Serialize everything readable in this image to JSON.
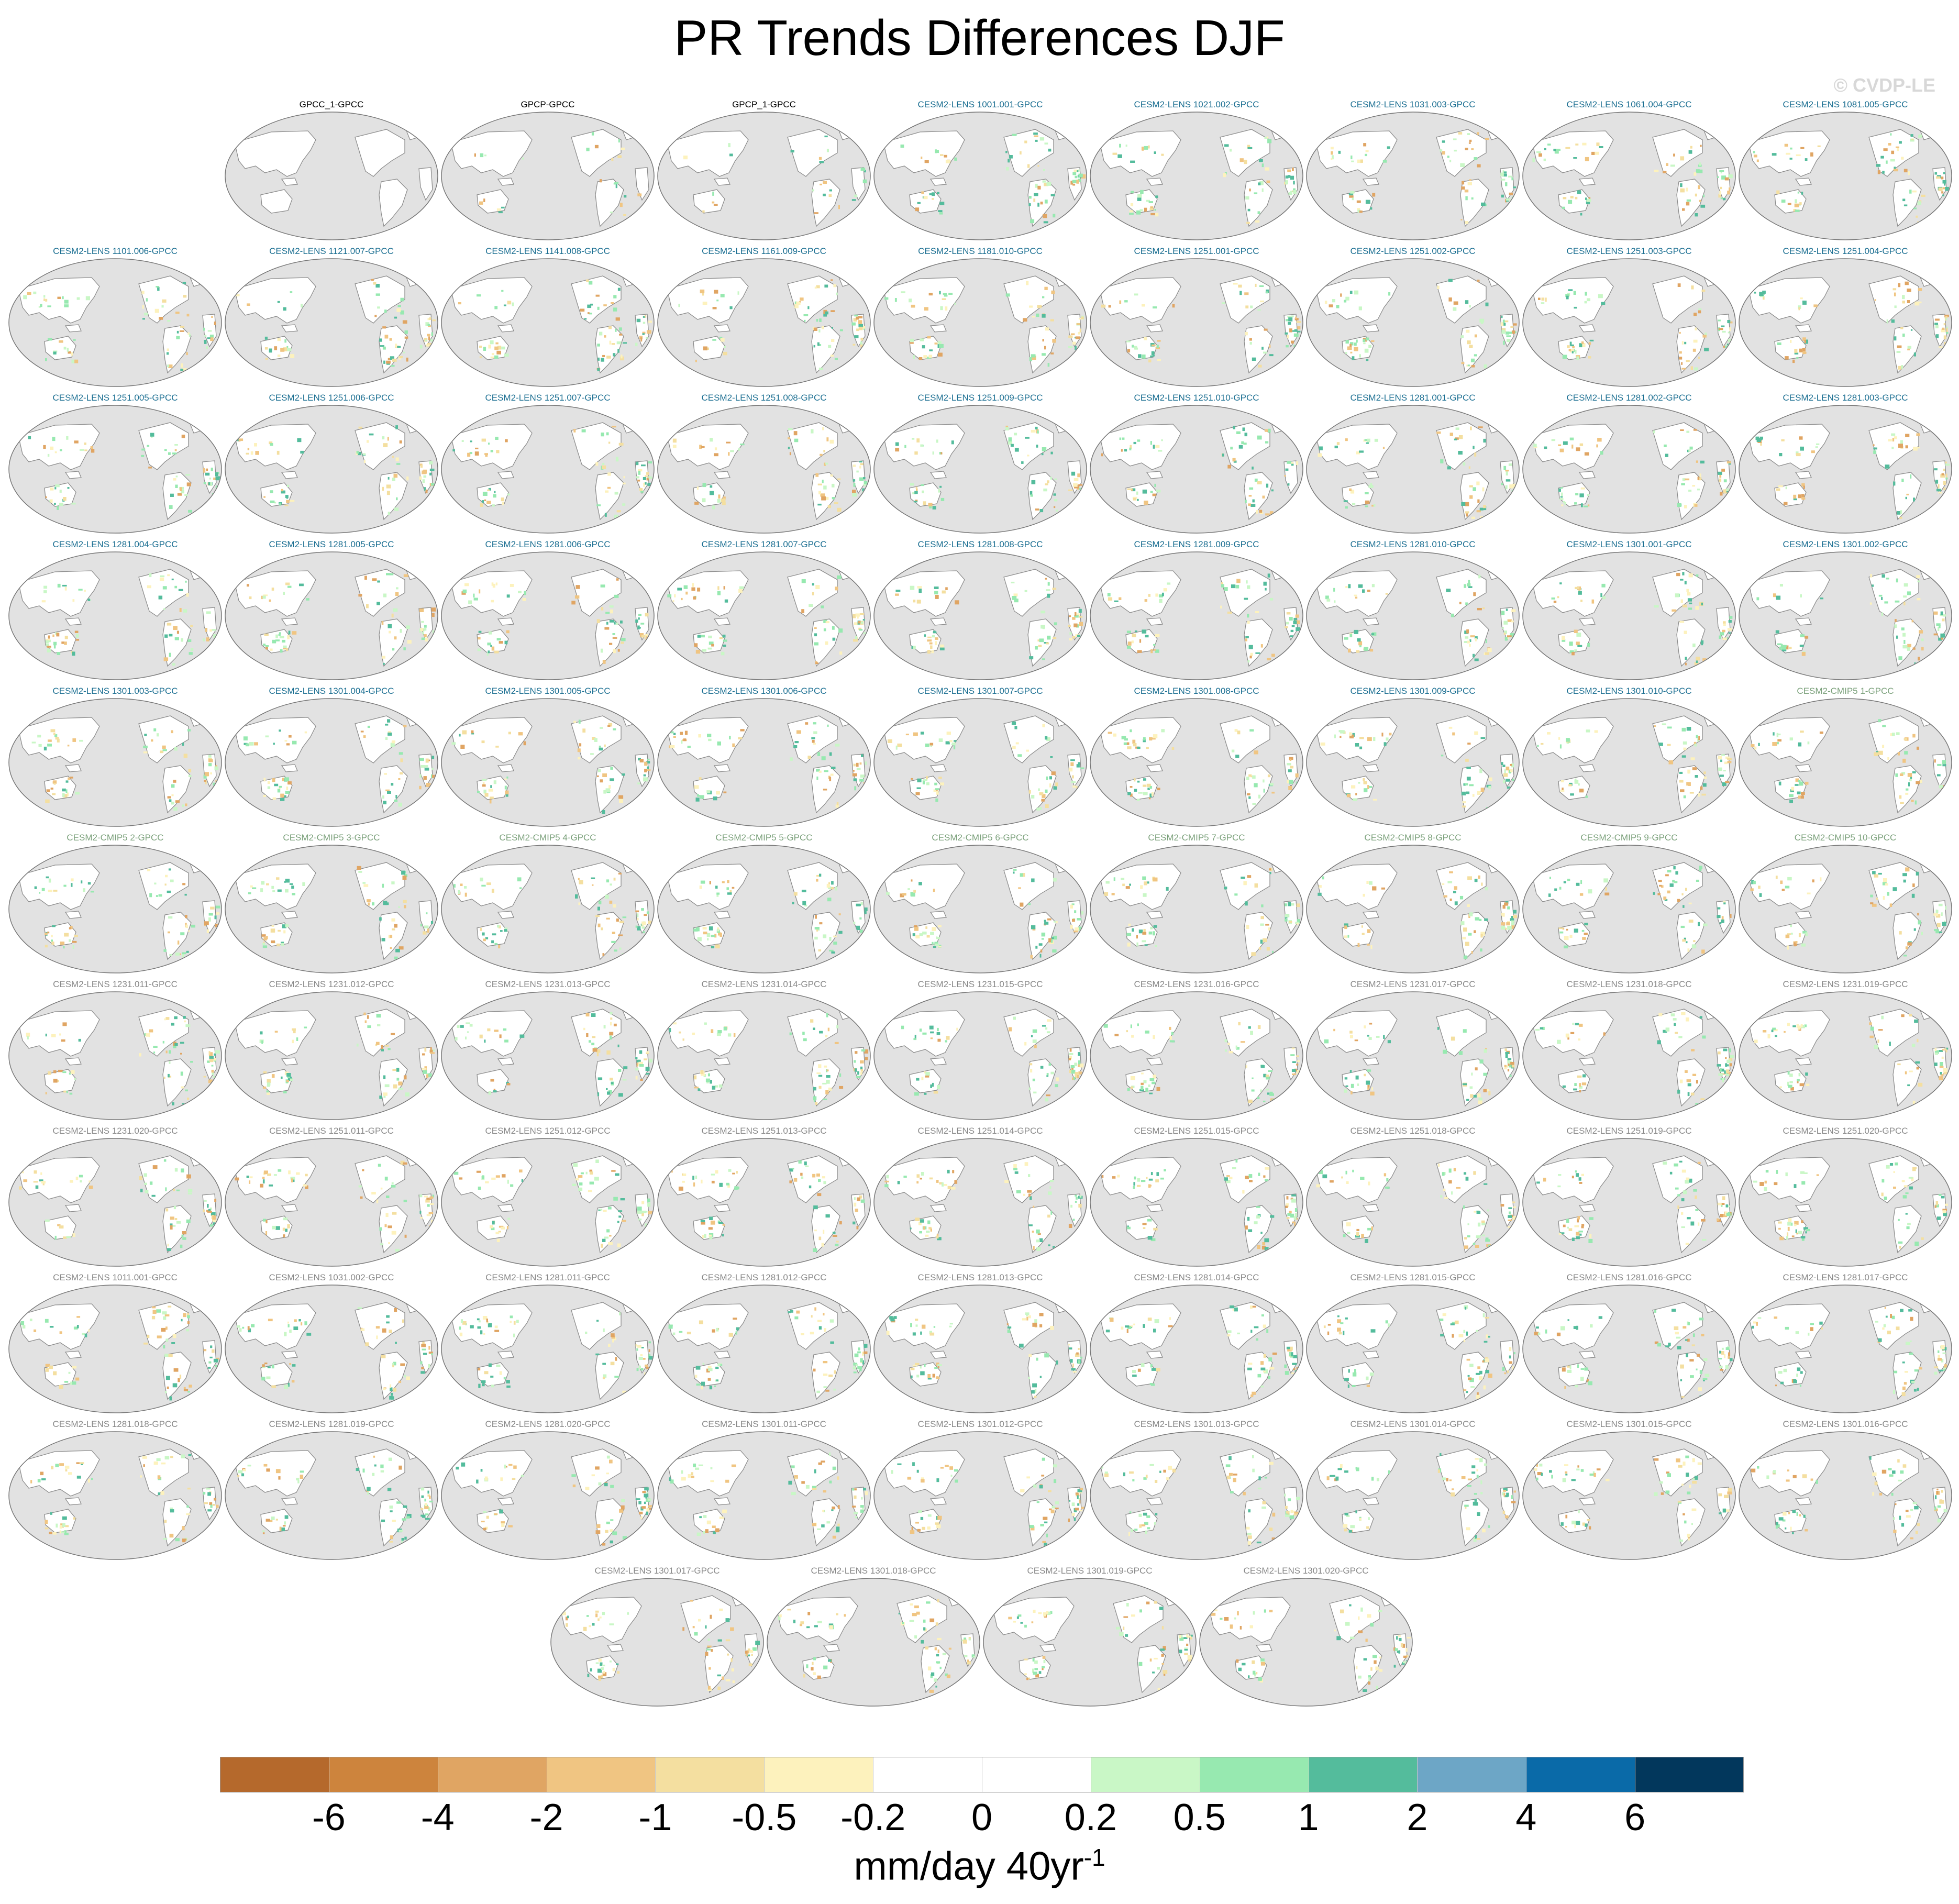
{
  "title": "PR Trends Differences DJF",
  "watermark": "© CVDP-LE",
  "colors": {
    "ocean": "#e2e2e2",
    "coast": "#8c8c8c",
    "obs_label": "#000000",
    "lens_label": "#1a6e91",
    "cmip5_label": "#7aa07a",
    "grey_label": "#888888"
  },
  "panel_rows": [
    [
      {
        "label": "GPCC_1-GPCC",
        "group": "obs"
      },
      {
        "label": "GPCP-GPCC",
        "group": "obs"
      },
      {
        "label": "GPCP_1-GPCC",
        "group": "obs"
      },
      {
        "label": "CESM2-LENS 1001.001-GPCC",
        "group": "lens"
      },
      {
        "label": "CESM2-LENS 1021.002-GPCC",
        "group": "lens"
      },
      {
        "label": "CESM2-LENS 1031.003-GPCC",
        "group": "lens"
      },
      {
        "label": "CESM2-LENS 1061.004-GPCC",
        "group": "lens"
      },
      {
        "label": "CESM2-LENS 1081.005-GPCC",
        "group": "lens"
      }
    ],
    [
      {
        "label": "CESM2-LENS 1101.006-GPCC",
        "group": "lens"
      },
      {
        "label": "CESM2-LENS 1121.007-GPCC",
        "group": "lens"
      },
      {
        "label": "CESM2-LENS 1141.008-GPCC",
        "group": "lens"
      },
      {
        "label": "CESM2-LENS 1161.009-GPCC",
        "group": "lens"
      },
      {
        "label": "CESM2-LENS 1181.010-GPCC",
        "group": "lens"
      },
      {
        "label": "CESM2-LENS 1251.001-GPCC",
        "group": "lens"
      },
      {
        "label": "CESM2-LENS 1251.002-GPCC",
        "group": "lens"
      },
      {
        "label": "CESM2-LENS 1251.003-GPCC",
        "group": "lens"
      },
      {
        "label": "CESM2-LENS 1251.004-GPCC",
        "group": "lens"
      }
    ],
    [
      {
        "label": "CESM2-LENS 1251.005-GPCC",
        "group": "lens"
      },
      {
        "label": "CESM2-LENS 1251.006-GPCC",
        "group": "lens"
      },
      {
        "label": "CESM2-LENS 1251.007-GPCC",
        "group": "lens"
      },
      {
        "label": "CESM2-LENS 1251.008-GPCC",
        "group": "lens"
      },
      {
        "label": "CESM2-LENS 1251.009-GPCC",
        "group": "lens"
      },
      {
        "label": "CESM2-LENS 1251.010-GPCC",
        "group": "lens"
      },
      {
        "label": "CESM2-LENS 1281.001-GPCC",
        "group": "lens"
      },
      {
        "label": "CESM2-LENS 1281.002-GPCC",
        "group": "lens"
      },
      {
        "label": "CESM2-LENS 1281.003-GPCC",
        "group": "lens"
      }
    ],
    [
      {
        "label": "CESM2-LENS 1281.004-GPCC",
        "group": "lens"
      },
      {
        "label": "CESM2-LENS 1281.005-GPCC",
        "group": "lens"
      },
      {
        "label": "CESM2-LENS 1281.006-GPCC",
        "group": "lens"
      },
      {
        "label": "CESM2-LENS 1281.007-GPCC",
        "group": "lens"
      },
      {
        "label": "CESM2-LENS 1281.008-GPCC",
        "group": "lens"
      },
      {
        "label": "CESM2-LENS 1281.009-GPCC",
        "group": "lens"
      },
      {
        "label": "CESM2-LENS 1281.010-GPCC",
        "group": "lens"
      },
      {
        "label": "CESM2-LENS 1301.001-GPCC",
        "group": "lens"
      },
      {
        "label": "CESM2-LENS 1301.002-GPCC",
        "group": "lens"
      }
    ],
    [
      {
        "label": "CESM2-LENS 1301.003-GPCC",
        "group": "lens"
      },
      {
        "label": "CESM2-LENS 1301.004-GPCC",
        "group": "lens"
      },
      {
        "label": "CESM2-LENS 1301.005-GPCC",
        "group": "lens"
      },
      {
        "label": "CESM2-LENS 1301.006-GPCC",
        "group": "lens"
      },
      {
        "label": "CESM2-LENS 1301.007-GPCC",
        "group": "lens"
      },
      {
        "label": "CESM2-LENS 1301.008-GPCC",
        "group": "lens"
      },
      {
        "label": "CESM2-LENS 1301.009-GPCC",
        "group": "lens"
      },
      {
        "label": "CESM2-LENS 1301.010-GPCC",
        "group": "lens"
      },
      {
        "label": "CESM2-CMIP5 1-GPCC",
        "group": "cmip5"
      }
    ],
    [
      {
        "label": "CESM2-CMIP5 2-GPCC",
        "group": "cmip5"
      },
      {
        "label": "CESM2-CMIP5 3-GPCC",
        "group": "cmip5"
      },
      {
        "label": "CESM2-CMIP5 4-GPCC",
        "group": "cmip5"
      },
      {
        "label": "CESM2-CMIP5 5-GPCC",
        "group": "cmip5"
      },
      {
        "label": "CESM2-CMIP5 6-GPCC",
        "group": "cmip5"
      },
      {
        "label": "CESM2-CMIP5 7-GPCC",
        "group": "cmip5"
      },
      {
        "label": "CESM2-CMIP5 8-GPCC",
        "group": "cmip5"
      },
      {
        "label": "CESM2-CMIP5 9-GPCC",
        "group": "cmip5"
      },
      {
        "label": "CESM2-CMIP5 10-GPCC",
        "group": "cmip5"
      }
    ],
    [
      {
        "label": "CESM2-LENS 1231.011-GPCC",
        "group": "grey"
      },
      {
        "label": "CESM2-LENS 1231.012-GPCC",
        "group": "grey"
      },
      {
        "label": "CESM2-LENS 1231.013-GPCC",
        "group": "grey"
      },
      {
        "label": "CESM2-LENS 1231.014-GPCC",
        "group": "grey"
      },
      {
        "label": "CESM2-LENS 1231.015-GPCC",
        "group": "grey"
      },
      {
        "label": "CESM2-LENS 1231.016-GPCC",
        "group": "grey"
      },
      {
        "label": "CESM2-LENS 1231.017-GPCC",
        "group": "grey"
      },
      {
        "label": "CESM2-LENS 1231.018-GPCC",
        "group": "grey"
      },
      {
        "label": "CESM2-LENS 1231.019-GPCC",
        "group": "grey"
      }
    ],
    [
      {
        "label": "CESM2-LENS 1231.020-GPCC",
        "group": "grey"
      },
      {
        "label": "CESM2-LENS 1251.011-GPCC",
        "group": "grey"
      },
      {
        "label": "CESM2-LENS 1251.012-GPCC",
        "group": "grey"
      },
      {
        "label": "CESM2-LENS 1251.013-GPCC",
        "group": "grey"
      },
      {
        "label": "CESM2-LENS 1251.014-GPCC",
        "group": "grey"
      },
      {
        "label": "CESM2-LENS 1251.015-GPCC",
        "group": "grey"
      },
      {
        "label": "CESM2-LENS 1251.018-GPCC",
        "group": "grey"
      },
      {
        "label": "CESM2-LENS 1251.019-GPCC",
        "group": "grey"
      },
      {
        "label": "CESM2-LENS 1251.020-GPCC",
        "group": "grey"
      }
    ],
    [
      {
        "label": "CESM2-LENS 1011.001-GPCC",
        "group": "grey"
      },
      {
        "label": "CESM2-LENS 1031.002-GPCC",
        "group": "grey"
      },
      {
        "label": "CESM2-LENS 1281.011-GPCC",
        "group": "grey"
      },
      {
        "label": "CESM2-LENS 1281.012-GPCC",
        "group": "grey"
      },
      {
        "label": "CESM2-LENS 1281.013-GPCC",
        "group": "grey"
      },
      {
        "label": "CESM2-LENS 1281.014-GPCC",
        "group": "grey"
      },
      {
        "label": "CESM2-LENS 1281.015-GPCC",
        "group": "grey"
      },
      {
        "label": "CESM2-LENS 1281.016-GPCC",
        "group": "grey"
      },
      {
        "label": "CESM2-LENS 1281.017-GPCC",
        "group": "grey"
      }
    ],
    [
      {
        "label": "CESM2-LENS 1281.018-GPCC",
        "group": "grey"
      },
      {
        "label": "CESM2-LENS 1281.019-GPCC",
        "group": "grey"
      },
      {
        "label": "CESM2-LENS 1281.020-GPCC",
        "group": "grey"
      },
      {
        "label": "CESM2-LENS 1301.011-GPCC",
        "group": "grey"
      },
      {
        "label": "CESM2-LENS 1301.012-GPCC",
        "group": "grey"
      },
      {
        "label": "CESM2-LENS 1301.013-GPCC",
        "group": "grey"
      },
      {
        "label": "CESM2-LENS 1301.014-GPCC",
        "group": "grey"
      },
      {
        "label": "CESM2-LENS 1301.015-GPCC",
        "group": "grey"
      },
      {
        "label": "CESM2-LENS 1301.016-GPCC",
        "group": "grey"
      }
    ],
    [
      {
        "label": "CESM2-LENS 1301.017-GPCC",
        "group": "grey"
      },
      {
        "label": "CESM2-LENS 1301.018-GPCC",
        "group": "grey"
      },
      {
        "label": "CESM2-LENS 1301.019-GPCC",
        "group": "grey"
      },
      {
        "label": "CESM2-LENS 1301.020-GPCC",
        "group": "grey"
      }
    ]
  ],
  "colorbar": {
    "units_main": "mm/day 40yr",
    "units_sup": "-1",
    "colors": [
      "#b5692c",
      "#cd843d",
      "#e0a563",
      "#f0c582",
      "#f4dfa0",
      "#fdf2bd",
      "#ffffff",
      "#ffffff",
      "#c9f7c6",
      "#97e9b0",
      "#54bc9c",
      "#6da6c6",
      "#0a6aa8",
      "#02375c"
    ],
    "tick_labels": [
      "-6",
      "-4",
      "-2",
      "-1",
      "-0.5",
      "-0.2",
      "0",
      "0.2",
      "0.5",
      "1",
      "2",
      "4",
      "6"
    ]
  }
}
